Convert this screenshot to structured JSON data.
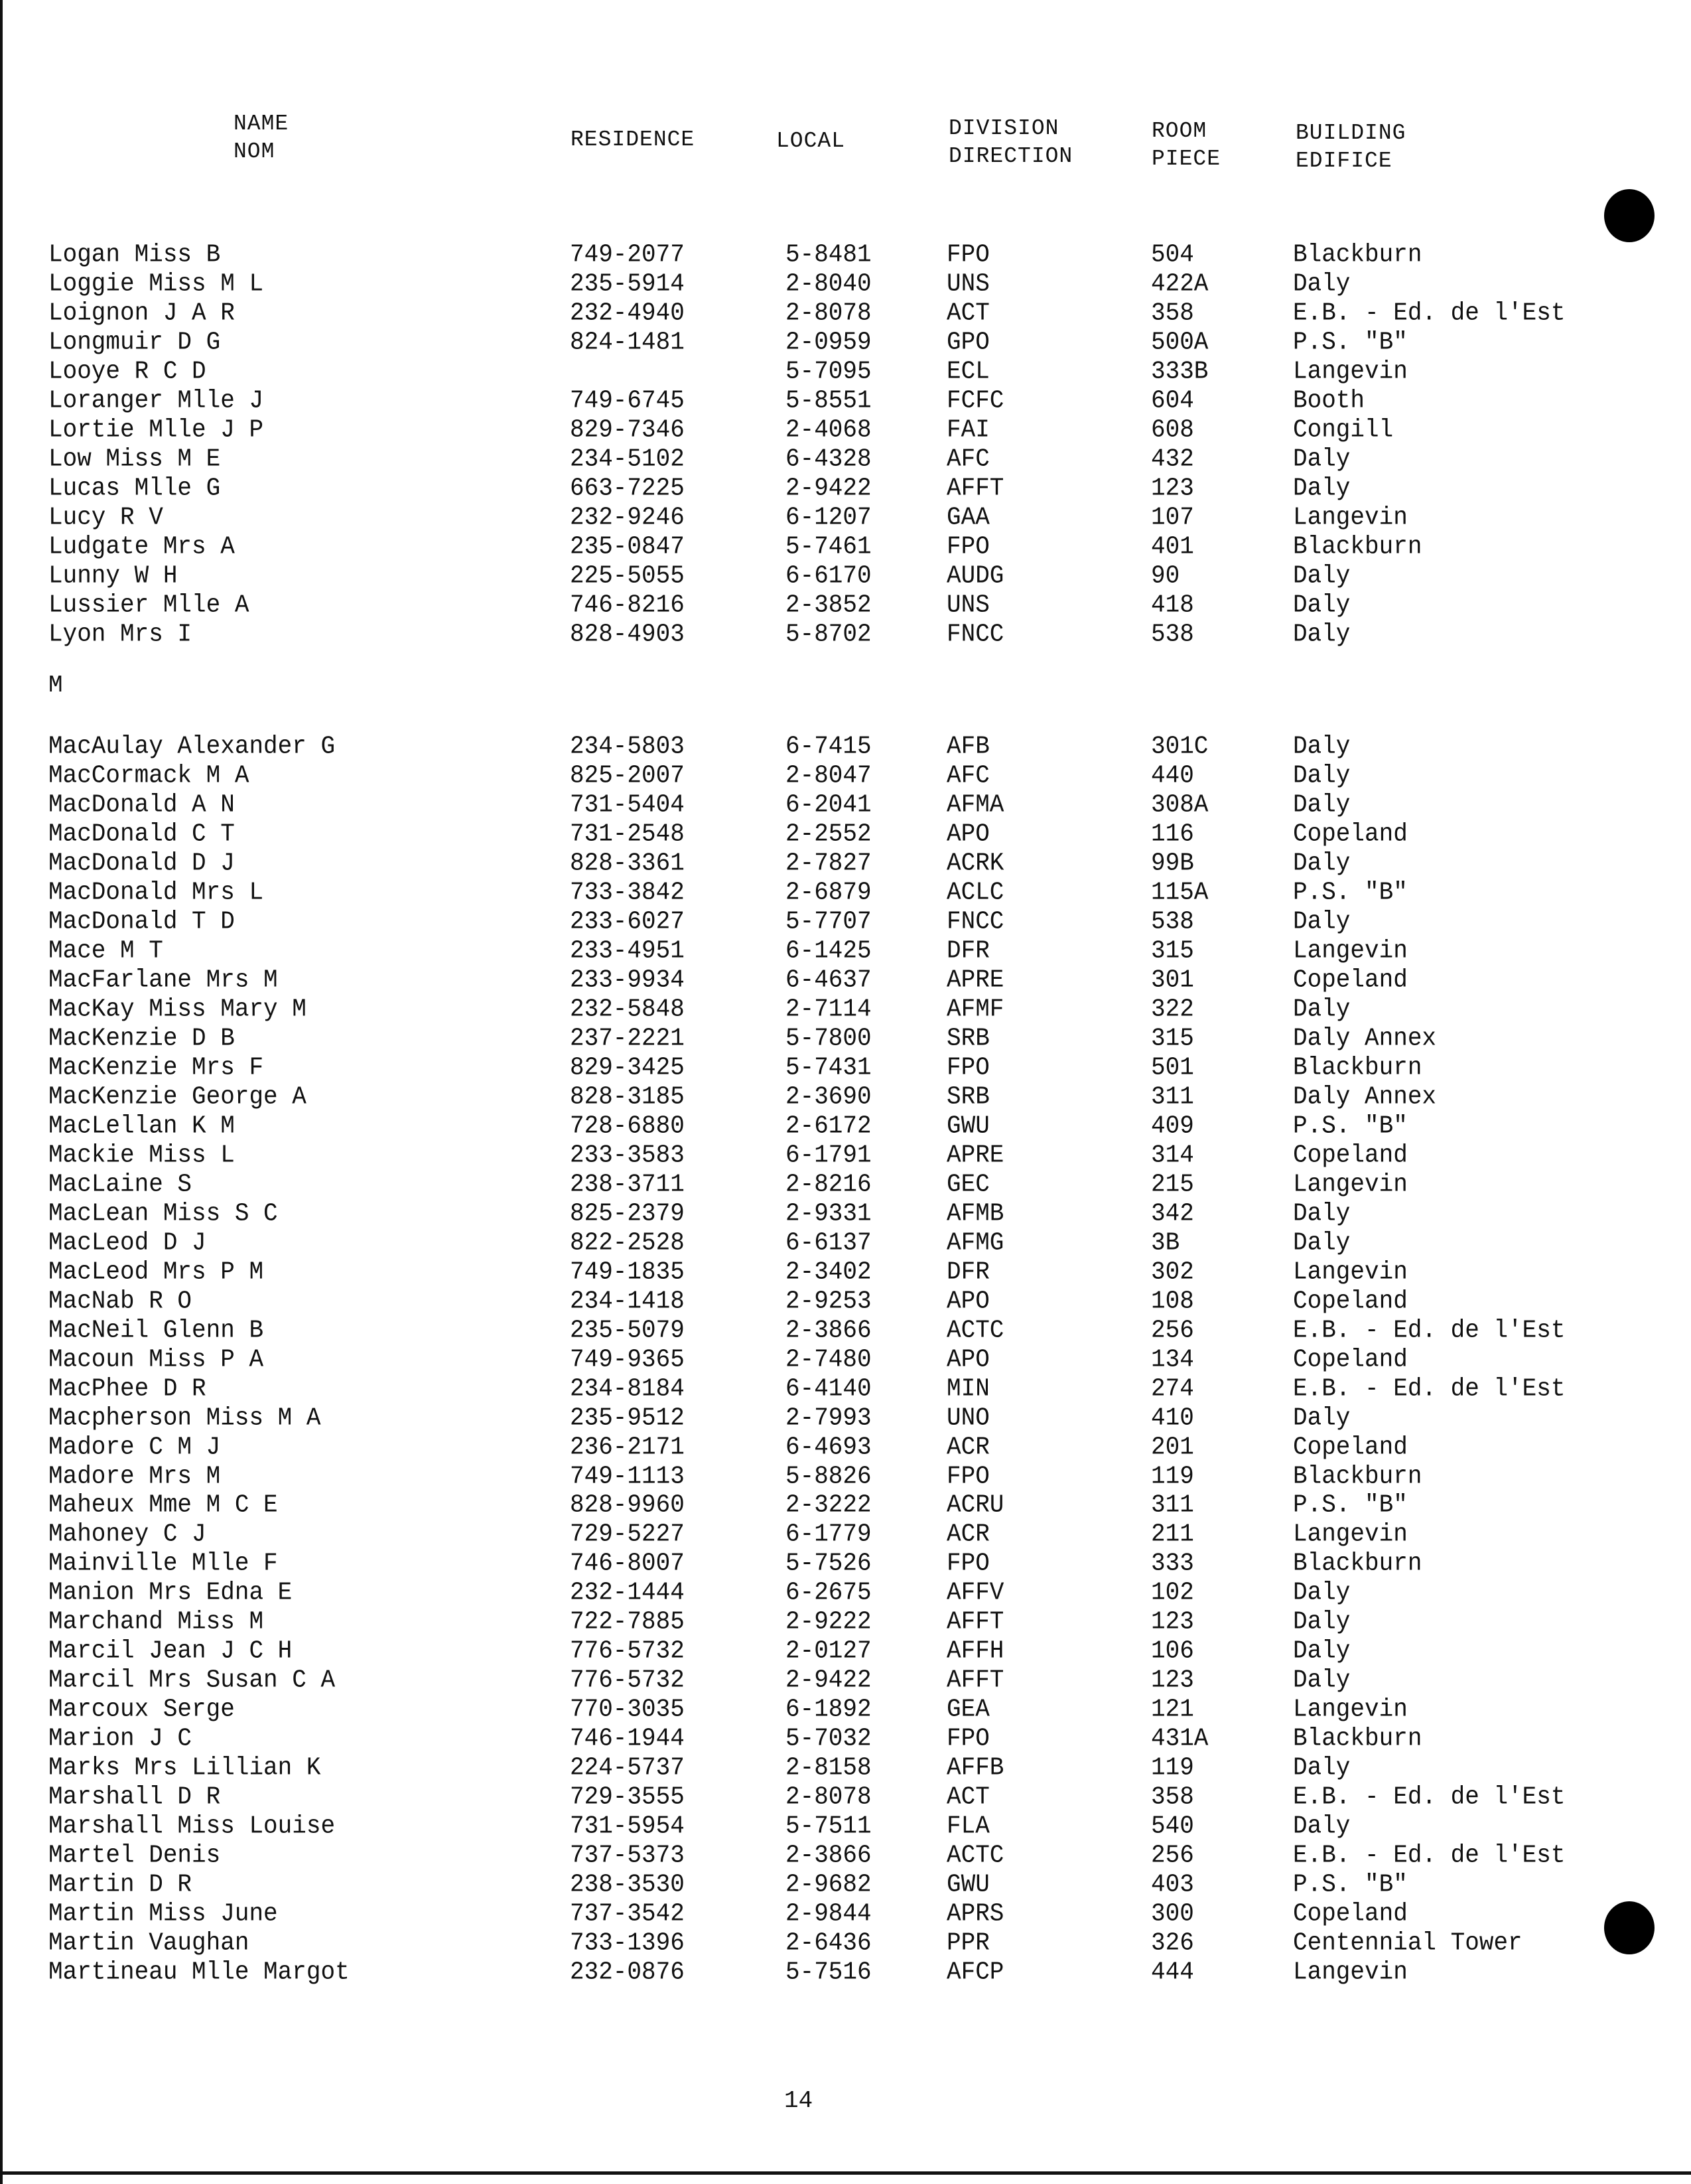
{
  "headers": {
    "name": [
      "NAME",
      "NOM"
    ],
    "residence": "RESIDENCE",
    "local": "LOCAL",
    "division": [
      "DIVISION",
      "DIRECTION"
    ],
    "room": [
      "ROOM",
      "PIECE"
    ],
    "building": [
      "BUILDING",
      "EDIFICE"
    ]
  },
  "section_l": [
    [
      "Logan Miss B",
      "749-2077",
      "5-8481",
      "FPO",
      "504",
      "Blackburn"
    ],
    [
      "Loggie Miss M L",
      "235-5914",
      "2-8040",
      "UNS",
      "422A",
      "Daly"
    ],
    [
      "Loignon J A R",
      "232-4940",
      "2-8078",
      "ACT",
      "358",
      "E.B. - Ed. de l'Est"
    ],
    [
      "Longmuir D G",
      "824-1481",
      "2-0959",
      "GPO",
      "500A",
      "P.S. \"B\""
    ],
    [
      "Looye R C D",
      "",
      "5-7095",
      "ECL",
      "333B",
      "Langevin"
    ],
    [
      "Loranger Mlle J",
      "749-6745",
      "5-8551",
      "FCFC",
      "604",
      "Booth"
    ],
    [
      "Lortie Mlle J P",
      "829-7346",
      "2-4068",
      "FAI",
      "608",
      "Congill"
    ],
    [
      "Low Miss M E",
      "234-5102",
      "6-4328",
      "AFC",
      "432",
      "Daly"
    ],
    [
      "Lucas Mlle G",
      "663-7225",
      "2-9422",
      "AFFT",
      "123",
      "Daly"
    ],
    [
      "Lucy R V",
      "232-9246",
      "6-1207",
      "GAA",
      "107",
      "Langevin"
    ],
    [
      "Ludgate Mrs A",
      "235-0847",
      "5-7461",
      "FPO",
      "401",
      "Blackburn"
    ],
    [
      "Lunny W H",
      "225-5055",
      "6-6170",
      "AUDG",
      "90",
      "Daly"
    ],
    [
      "Lussier Mlle A",
      "746-8216",
      "2-3852",
      "UNS",
      "418",
      "Daly"
    ],
    [
      "Lyon Mrs I",
      "828-4903",
      "5-8702",
      "FNCC",
      "538",
      "Daly"
    ]
  ],
  "section_m_label": "M",
  "section_m": [
    [
      "MacAulay Alexander G",
      "234-5803",
      "6-7415",
      "AFB",
      "301C",
      "Daly"
    ],
    [
      "MacCormack M A",
      "825-2007",
      "2-8047",
      "AFC",
      "440",
      "Daly"
    ],
    [
      "MacDonald A N",
      "731-5404",
      "6-2041",
      "AFMA",
      "308A",
      "Daly"
    ],
    [
      "MacDonald C T",
      "731-2548",
      "2-2552",
      "APO",
      "116",
      "Copeland"
    ],
    [
      "MacDonald D J",
      "828-3361",
      "2-7827",
      "ACRK",
      "99B",
      "Daly"
    ],
    [
      "MacDonald Mrs L",
      "733-3842",
      "2-6879",
      "ACLC",
      "115A",
      "P.S. \"B\""
    ],
    [
      "MacDonald T D",
      "233-6027",
      "5-7707",
      "FNCC",
      "538",
      "Daly"
    ],
    [
      "Mace M T",
      "233-4951",
      "6-1425",
      "DFR",
      "315",
      "Langevin"
    ],
    [
      "MacFarlane Mrs M",
      "233-9934",
      "6-4637",
      "APRE",
      "301",
      "Copeland"
    ],
    [
      "MacKay Miss Mary M",
      "232-5848",
      "2-7114",
      "AFMF",
      "322",
      "Daly"
    ],
    [
      "MacKenzie D B",
      "237-2221",
      "5-7800",
      "SRB",
      "315",
      "Daly Annex"
    ],
    [
      "MacKenzie Mrs F",
      "829-3425",
      "5-7431",
      "FPO",
      "501",
      "Blackburn"
    ],
    [
      "MacKenzie George A",
      "828-3185",
      "2-3690",
      "SRB",
      "311",
      "Daly Annex"
    ],
    [
      "MacLellan K M",
      "728-6880",
      "2-6172",
      "GWU",
      "409",
      "P.S. \"B\""
    ],
    [
      "Mackie Miss L",
      "233-3583",
      "6-1791",
      "APRE",
      "314",
      "Copeland"
    ],
    [
      "MacLaine S",
      "238-3711",
      "2-8216",
      "GEC",
      "215",
      "Langevin"
    ],
    [
      "MacLean Miss S C",
      "825-2379",
      "2-9331",
      "AFMB",
      "342",
      "Daly"
    ],
    [
      "MacLeod D J",
      "822-2528",
      "6-6137",
      "AFMG",
      "3B",
      "Daly"
    ],
    [
      "MacLeod Mrs P M",
      "749-1835",
      "2-3402",
      "DFR",
      "302",
      "Langevin"
    ],
    [
      "MacNab R O",
      "234-1418",
      "2-9253",
      "APO",
      "108",
      "Copeland"
    ],
    [
      "MacNeil Glenn B",
      "235-5079",
      "2-3866",
      "ACTC",
      "256",
      "E.B. - Ed. de l'Est"
    ],
    [
      "Macoun Miss P A",
      "749-9365",
      "2-7480",
      "APO",
      "134",
      "Copeland"
    ],
    [
      "MacPhee D R",
      "234-8184",
      "6-4140",
      "MIN",
      "274",
      "E.B. - Ed. de l'Est"
    ],
    [
      "Macpherson Miss M A",
      "235-9512",
      "2-7993",
      "UNO",
      "410",
      "Daly"
    ],
    [
      "Madore C M J",
      "236-2171",
      "6-4693",
      "ACR",
      "201",
      "Copeland"
    ],
    [
      "Madore Mrs M",
      "749-1113",
      "5-8826",
      "FPO",
      "119",
      "Blackburn"
    ],
    [
      "Maheux Mme M C E",
      "828-9960",
      "2-3222",
      "ACRU",
      "311",
      "P.S. \"B\""
    ],
    [
      "Mahoney C J",
      "729-5227",
      "6-1779",
      "ACR",
      "211",
      "Langevin"
    ],
    [
      "Mainville Mlle F",
      "746-8007",
      "5-7526",
      "FPO",
      "333",
      "Blackburn"
    ],
    [
      "Manion Mrs Edna E",
      "232-1444",
      "6-2675",
      "AFFV",
      "102",
      "Daly"
    ],
    [
      "Marchand Miss M",
      "722-7885",
      "2-9222",
      "AFFT",
      "123",
      "Daly"
    ],
    [
      "Marcil Jean J C H",
      "776-5732",
      "2-0127",
      "AFFH",
      "106",
      "Daly"
    ],
    [
      "Marcil Mrs Susan C A",
      "776-5732",
      "2-9422",
      "AFFT",
      "123",
      "Daly"
    ],
    [
      "Marcoux Serge",
      "770-3035",
      "6-1892",
      "GEA",
      "121",
      "Langevin"
    ],
    [
      "Marion J C",
      "746-1944",
      "5-7032",
      "FPO",
      "431A",
      "Blackburn"
    ],
    [
      "Marks Mrs Lillian K",
      "224-5737",
      "2-8158",
      "AFFB",
      "119",
      "Daly"
    ],
    [
      "Marshall D R",
      "729-3555",
      "2-8078",
      "ACT",
      "358",
      "E.B. - Ed. de l'Est"
    ],
    [
      "Marshall Miss Louise",
      "731-5954",
      "5-7511",
      "FLA",
      "540",
      "Daly"
    ],
    [
      "Martel Denis",
      "737-5373",
      "2-3866",
      "ACTC",
      "256",
      "E.B. - Ed. de l'Est"
    ],
    [
      "Martin D R",
      "238-3530",
      "2-9682",
      "GWU",
      "403",
      "P.S. \"B\""
    ],
    [
      "Martin Miss June",
      "737-3542",
      "2-9844",
      "APRS",
      "300",
      "Copeland"
    ],
    [
      "Martin Vaughan",
      "733-1396",
      "2-6436",
      "PPR",
      "326",
      "Centennial Tower"
    ],
    [
      "Martineau Mlle Margot",
      "232-0876",
      "5-7516",
      "AFCP",
      "444",
      "Langevin"
    ]
  ],
  "page_number": "14"
}
